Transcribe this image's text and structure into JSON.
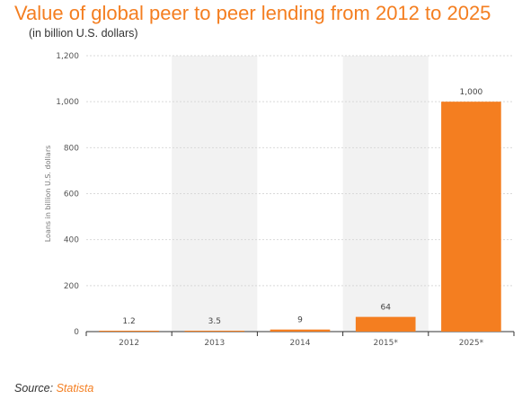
{
  "title": "Value of global peer to peer lending from 2012 to 2025",
  "subtitle": "(in billion U.S. dollars)",
  "source": {
    "prefix": "Source:",
    "link": "Statista"
  },
  "colors": {
    "bar": "#f47e20",
    "title": "#f47e20",
    "band": "#f2f2f2",
    "grid": "#d9d9d9"
  },
  "chart_data": {
    "type": "bar",
    "categories": [
      "2012",
      "2013",
      "2014",
      "2015*",
      "2025*"
    ],
    "values": [
      1.2,
      3.5,
      9,
      64,
      1000
    ],
    "value_labels": [
      "1.2",
      "3.5",
      "9",
      "64",
      "1,000"
    ],
    "ylabel": "Loans in billion U.S. dollars",
    "ylim": [
      0,
      1200
    ],
    "yticks": [
      0,
      200,
      400,
      600,
      800,
      1000,
      1200
    ],
    "ytick_labels": [
      "0",
      "200",
      "400",
      "600",
      "800",
      "1,000",
      "1,200"
    ],
    "grid": true,
    "alternating_bands": true
  }
}
